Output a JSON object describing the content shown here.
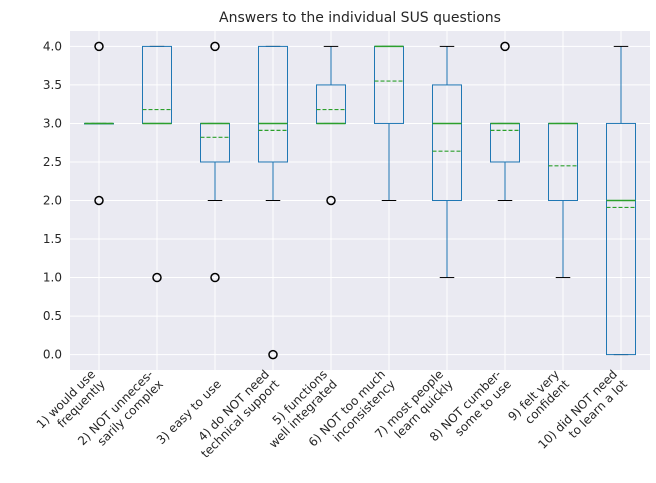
{
  "chart_data": {
    "type": "box",
    "title": "Answers to the individual SUS questions",
    "categories": [
      [
        "1) would use",
        "frequently"
      ],
      [
        "2) NOT unneces-",
        "sarily complex"
      ],
      [
        "3) easy to use"
      ],
      [
        "4) do NOT need",
        "technical support"
      ],
      [
        "5) functions",
        "well integrated"
      ],
      [
        "6) NOT too much",
        "inconsistency"
      ],
      [
        "7) most people",
        "learn quickly"
      ],
      [
        "8) NOT cumber-",
        "some to use"
      ],
      [
        "9) felt very",
        "confident"
      ],
      [
        "10) did NOT need",
        "to learn a lot"
      ]
    ],
    "boxes": [
      {
        "q1": 3,
        "median": 3,
        "q3": 3,
        "whislo": 3,
        "whishi": 3,
        "mean": 3.0,
        "fliers": [
          4,
          2
        ]
      },
      {
        "q1": 3,
        "median": 3,
        "q3": 4,
        "whislo": 3,
        "whishi": 4,
        "mean": 3.18,
        "fliers": [
          1
        ]
      },
      {
        "q1": 2.5,
        "median": 3,
        "q3": 3,
        "whislo": 2,
        "whishi": 3,
        "mean": 2.82,
        "fliers": [
          4,
          1
        ]
      },
      {
        "q1": 2.5,
        "median": 3,
        "q3": 4,
        "whislo": 2,
        "whishi": 4,
        "mean": 2.91,
        "fliers": [
          0
        ]
      },
      {
        "q1": 3,
        "median": 3,
        "q3": 3.5,
        "whislo": 3,
        "whishi": 4,
        "mean": 3.18,
        "fliers": [
          2
        ]
      },
      {
        "q1": 3,
        "median": 4,
        "q3": 4,
        "whislo": 2,
        "whishi": 4,
        "mean": 3.55,
        "fliers": []
      },
      {
        "q1": 2,
        "median": 3,
        "q3": 3.5,
        "whislo": 1,
        "whishi": 4,
        "mean": 2.64,
        "fliers": []
      },
      {
        "q1": 2.5,
        "median": 3,
        "q3": 3,
        "whislo": 2,
        "whishi": 3,
        "mean": 2.91,
        "fliers": [
          4
        ]
      },
      {
        "q1": 2,
        "median": 3,
        "q3": 3,
        "whislo": 1,
        "whishi": 3,
        "mean": 2.45,
        "fliers": []
      },
      {
        "q1": 0,
        "median": 2,
        "q3": 3,
        "whislo": 0,
        "whishi": 4,
        "mean": 1.91,
        "fliers": []
      }
    ],
    "box_color": "#1f77b4",
    "median_color": "#2ca02c",
    "mean_color": "#2ca02c",
    "flier_color": "#000000",
    "ylim": [
      -0.2,
      4.2
    ],
    "yticks": [
      {
        "value": 0,
        "label": "0.0"
      },
      0.5,
      {
        "value": 1,
        "label": "1.0"
      },
      1.5,
      {
        "value": 2,
        "label": "2.0"
      },
      2.5,
      {
        "value": 3,
        "label": "3.0"
      },
      3.5,
      {
        "value": 4,
        "label": "4.0"
      }
    ],
    "grid": true
  }
}
